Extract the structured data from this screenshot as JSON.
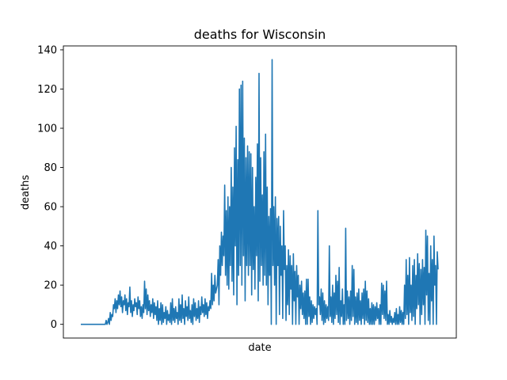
{
  "chart_data": {
    "type": "line",
    "title": "deaths for Wisconsin",
    "xlabel": "date",
    "ylabel": "deaths",
    "ylim": [
      -7,
      142
    ],
    "yticks": [
      0,
      20,
      40,
      60,
      80,
      100,
      120,
      140
    ],
    "xticks": [],
    "grid": false,
    "line_color": "#1f77b4",
    "series": [
      {
        "values": [
          0,
          0,
          0,
          0,
          0,
          0,
          0,
          0,
          0,
          0,
          0,
          0,
          0,
          0,
          0,
          0,
          0,
          0,
          0,
          0,
          0,
          0,
          0,
          0,
          0,
          0,
          0,
          0,
          0,
          0,
          0,
          2,
          0,
          1,
          3,
          0,
          6,
          2,
          5,
          4,
          10,
          8,
          13,
          6,
          12,
          8,
          15,
          10,
          17,
          9,
          14,
          6,
          12,
          10,
          15,
          7,
          13,
          5,
          11,
          9,
          19,
          6,
          12,
          4,
          10,
          7,
          13,
          9,
          11,
          5,
          14,
          8,
          12,
          4,
          9,
          3,
          10,
          6,
          22,
          8,
          18,
          5,
          15,
          7,
          12,
          4,
          10,
          6,
          13,
          3,
          11,
          5,
          9,
          2,
          12,
          0,
          8,
          2,
          11,
          0,
          10,
          1,
          6,
          3,
          9,
          0,
          7,
          2,
          5,
          1,
          11,
          0,
          13,
          2,
          8,
          1,
          9,
          3,
          6,
          0,
          13,
          2,
          10,
          1,
          15,
          3,
          8,
          0,
          12,
          4,
          9,
          2,
          14,
          3,
          7,
          1,
          10,
          0,
          13,
          4,
          11,
          2,
          8,
          3,
          12,
          1,
          9,
          5,
          14,
          6,
          10,
          4,
          13,
          5,
          11,
          3,
          9,
          7,
          12,
          8,
          26,
          10,
          20,
          12,
          25,
          16,
          18,
          20,
          33,
          10,
          40,
          25,
          47,
          30,
          45,
          35,
          71,
          25,
          58,
          20,
          65,
          18,
          60,
          30,
          80,
          22,
          70,
          15,
          90,
          40,
          101,
          10,
          84,
          25,
          120,
          30,
          122,
          20,
          124,
          35,
          95,
          12,
          85,
          30,
          91,
          25,
          88,
          30,
          87,
          15,
          80,
          28,
          60,
          18,
          75,
          35,
          92,
          12,
          128,
          22,
          85,
          30,
          66,
          20,
          88,
          25,
          97,
          20,
          70,
          10,
          55,
          25,
          59,
          0,
          135,
          30,
          60,
          20,
          65,
          0,
          54,
          30,
          55,
          5,
          50,
          25,
          40,
          3,
          58,
          28,
          40,
          2,
          30,
          10,
          38,
          5,
          35,
          18,
          30,
          0,
          36,
          12,
          27,
          0,
          30,
          14,
          25,
          0,
          20,
          8,
          22,
          5,
          16,
          3,
          17,
          0,
          23,
          0,
          23,
          4,
          14,
          0,
          12,
          1,
          10,
          3,
          9,
          5,
          8,
          0,
          58,
          10,
          14,
          5,
          18,
          2,
          16,
          0,
          12,
          1,
          10,
          3,
          9,
          2,
          40,
          4,
          14,
          1,
          20,
          0,
          16,
          3,
          25,
          5,
          22,
          1,
          29,
          0,
          12,
          4,
          18,
          0,
          10,
          0,
          49,
          2,
          17,
          3,
          14,
          0,
          17,
          2,
          30,
          4,
          28,
          0,
          14,
          1,
          16,
          0,
          18,
          2,
          12,
          0,
          16,
          3,
          18,
          0,
          22,
          2,
          17,
          1,
          13,
          0,
          8,
          0,
          11,
          0,
          10,
          0,
          9,
          2,
          11,
          3,
          8,
          0,
          10,
          0,
          21,
          5,
          20,
          3,
          17,
          2,
          22,
          0,
          5,
          0,
          7,
          1,
          4,
          0,
          3,
          1,
          6,
          0,
          8,
          0,
          5,
          0,
          9,
          1,
          7,
          0,
          6,
          0,
          20,
          3,
          33,
          5,
          25,
          0,
          34,
          6,
          20,
          2,
          30,
          4,
          33,
          0,
          25,
          8,
          36,
          10,
          31,
          0,
          28,
          5,
          33,
          10,
          29,
          0,
          48,
          15,
          45,
          2,
          26,
          0,
          40,
          12,
          33,
          0,
          45,
          20,
          30,
          0,
          37,
          28
        ]
      }
    ]
  }
}
